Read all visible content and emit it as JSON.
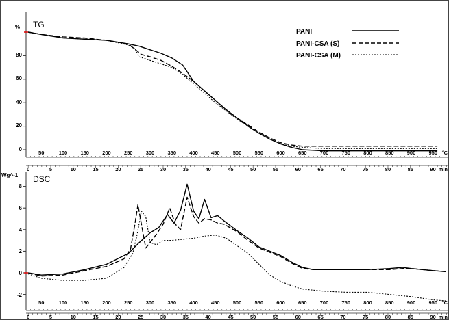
{
  "chart_data": [
    {
      "type": "line",
      "title": "TG",
      "ylabel": "%",
      "ylim": [
        -5,
        105
      ],
      "yticks": [
        "0",
        "20",
        "40",
        "60",
        "80"
      ],
      "top_temp_ticks": [
        "50",
        "100",
        "150",
        "200",
        "250",
        "300",
        "350",
        "400",
        "450",
        "500",
        "550",
        "600",
        "650",
        "700",
        "750",
        "800",
        "850",
        "900",
        "950"
      ],
      "top_temp_unit": "°C",
      "bottom_time_ticks": [
        "0",
        "5",
        "10",
        "15",
        "20",
        "25",
        "30",
        "35",
        "40",
        "45",
        "50",
        "55",
        "60",
        "65",
        "70",
        "75",
        "80",
        "85",
        "90"
      ],
      "bottom_time_unit": "min",
      "legend_position": "top-right",
      "series": [
        {
          "name": "PANI",
          "style": "solid",
          "points": [
            [
              20,
              100
            ],
            [
              50,
              98
            ],
            [
              100,
              95
            ],
            [
              150,
              94
            ],
            [
              200,
              93
            ],
            [
              250,
              90
            ],
            [
              275,
              88
            ],
            [
              300,
              85
            ],
            [
              325,
              82
            ],
            [
              350,
              78
            ],
            [
              375,
              72
            ],
            [
              400,
              58
            ],
            [
              425,
              50
            ],
            [
              450,
              42
            ],
            [
              475,
              34
            ],
            [
              500,
              27
            ],
            [
              525,
              20
            ],
            [
              550,
              14
            ],
            [
              575,
              9
            ],
            [
              600,
              5
            ],
            [
              625,
              2
            ],
            [
              650,
              0
            ],
            [
              700,
              -1
            ],
            [
              800,
              -1
            ],
            [
              900,
              -1
            ],
            [
              960,
              -1
            ]
          ]
        },
        {
          "name": "PANI-CSA (S)",
          "style": "dashed",
          "points": [
            [
              20,
              100
            ],
            [
              50,
              98
            ],
            [
              100,
              96
            ],
            [
              150,
              95
            ],
            [
              200,
              93
            ],
            [
              250,
              90
            ],
            [
              260,
              87
            ],
            [
              270,
              84
            ],
            [
              280,
              81
            ],
            [
              300,
              79
            ],
            [
              325,
              76
            ],
            [
              350,
              71
            ],
            [
              375,
              65
            ],
            [
              400,
              58
            ],
            [
              425,
              50
            ],
            [
              450,
              42
            ],
            [
              475,
              34
            ],
            [
              500,
              27
            ],
            [
              525,
              21
            ],
            [
              550,
              15
            ],
            [
              575,
              10
            ],
            [
              600,
              6
            ],
            [
              625,
              4
            ],
            [
              650,
              3
            ],
            [
              700,
              3
            ],
            [
              800,
              3
            ],
            [
              900,
              3
            ],
            [
              960,
              3
            ]
          ]
        },
        {
          "name": "PANI-CSA (M)",
          "style": "dotted",
          "points": [
            [
              20,
              100
            ],
            [
              50,
              98
            ],
            [
              100,
              95
            ],
            [
              150,
              94
            ],
            [
              200,
              93
            ],
            [
              250,
              89
            ],
            [
              265,
              86
            ],
            [
              275,
              79
            ],
            [
              300,
              76
            ],
            [
              325,
              73
            ],
            [
              350,
              70
            ],
            [
              375,
              64
            ],
            [
              400,
              56
            ],
            [
              425,
              48
            ],
            [
              450,
              40
            ],
            [
              475,
              33
            ],
            [
              500,
              26
            ],
            [
              525,
              20
            ],
            [
              550,
              14
            ],
            [
              575,
              9
            ],
            [
              600,
              5
            ],
            [
              625,
              3
            ],
            [
              650,
              2
            ],
            [
              700,
              1
            ],
            [
              800,
              1
            ],
            [
              900,
              1
            ],
            [
              960,
              1
            ]
          ]
        }
      ]
    },
    {
      "type": "line",
      "title": "DSC",
      "ylabel": "Wg^-1",
      "ylim": [
        -3,
        8.7
      ],
      "yticks": [
        "-2",
        "0",
        "2",
        "4",
        "6",
        "8"
      ],
      "top_temp_ticks": [
        "50",
        "100",
        "150",
        "200",
        "250",
        "300",
        "350",
        "400",
        "450",
        "500",
        "550",
        "600",
        "650",
        "700",
        "750",
        "800",
        "850",
        "900",
        "950"
      ],
      "top_temp_unit": "°C",
      "bottom_time_ticks": [
        "0",
        "5",
        "10",
        "15",
        "20",
        "25",
        "30",
        "35",
        "40",
        "45",
        "50",
        "55",
        "60",
        "65",
        "70",
        "75",
        "80",
        "85",
        "90"
      ],
      "bottom_time_unit": "min",
      "series": [
        {
          "name": "PANI",
          "style": "solid",
          "points": [
            [
              20,
              0
            ],
            [
              50,
              -0.2
            ],
            [
              100,
              -0.1
            ],
            [
              150,
              0.3
            ],
            [
              200,
              0.8
            ],
            [
              250,
              1.8
            ],
            [
              275,
              2.8
            ],
            [
              300,
              3.7
            ],
            [
              320,
              4.2
            ],
            [
              340,
              5.4
            ],
            [
              355,
              4.6
            ],
            [
              370,
              5.8
            ],
            [
              385,
              8.2
            ],
            [
              400,
              5.7
            ],
            [
              412,
              5.0
            ],
            [
              425,
              6.8
            ],
            [
              440,
              5.1
            ],
            [
              455,
              5.3
            ],
            [
              470,
              4.8
            ],
            [
              500,
              3.9
            ],
            [
              525,
              3.2
            ],
            [
              550,
              2.4
            ],
            [
              575,
              2.0
            ],
            [
              600,
              1.6
            ],
            [
              625,
              1.0
            ],
            [
              650,
              0.5
            ],
            [
              675,
              0.3
            ],
            [
              700,
              0.3
            ],
            [
              750,
              0.3
            ],
            [
              800,
              0.3
            ],
            [
              850,
              0.4
            ],
            [
              880,
              0.5
            ],
            [
              900,
              0.4
            ],
            [
              950,
              0.2
            ],
            [
              980,
              0.1
            ]
          ]
        },
        {
          "name": "PANI-CSA (S)",
          "style": "dashed",
          "points": [
            [
              20,
              0
            ],
            [
              50,
              -0.3
            ],
            [
              100,
              -0.2
            ],
            [
              150,
              0.2
            ],
            [
              200,
              0.6
            ],
            [
              240,
              1.3
            ],
            [
              255,
              2.2
            ],
            [
              265,
              4.5
            ],
            [
              272,
              6.3
            ],
            [
              280,
              4.5
            ],
            [
              290,
              2.3
            ],
            [
              300,
              2.8
            ],
            [
              315,
              3.6
            ],
            [
              330,
              4.5
            ],
            [
              345,
              6.0
            ],
            [
              358,
              4.5
            ],
            [
              370,
              4.0
            ],
            [
              385,
              7.0
            ],
            [
              400,
              5.2
            ],
            [
              412,
              4.6
            ],
            [
              425,
              5.0
            ],
            [
              440,
              4.9
            ],
            [
              455,
              4.6
            ],
            [
              470,
              4.5
            ],
            [
              500,
              3.8
            ],
            [
              525,
              3.0
            ],
            [
              550,
              2.3
            ],
            [
              575,
              1.9
            ],
            [
              600,
              1.5
            ],
            [
              625,
              0.9
            ],
            [
              650,
              0.4
            ],
            [
              675,
              0.3
            ],
            [
              700,
              0.3
            ],
            [
              750,
              0.3
            ],
            [
              800,
              0.3
            ],
            [
              850,
              0.3
            ],
            [
              880,
              0.4
            ],
            [
              900,
              0.4
            ],
            [
              950,
              0.2
            ],
            [
              980,
              0.1
            ]
          ]
        },
        {
          "name": "PANI-CSA (M)",
          "style": "dotted",
          "points": [
            [
              20,
              -0.1
            ],
            [
              50,
              -0.5
            ],
            [
              100,
              -0.7
            ],
            [
              150,
              -0.7
            ],
            [
              200,
              -0.5
            ],
            [
              240,
              0.5
            ],
            [
              260,
              1.8
            ],
            [
              270,
              3.5
            ],
            [
              280,
              5.7
            ],
            [
              290,
              5.2
            ],
            [
              300,
              2.8
            ],
            [
              315,
              2.6
            ],
            [
              330,
              3.0
            ],
            [
              350,
              3.0
            ],
            [
              375,
              3.1
            ],
            [
              400,
              3.2
            ],
            [
              425,
              3.4
            ],
            [
              450,
              3.5
            ],
            [
              475,
              3.2
            ],
            [
              500,
              2.5
            ],
            [
              525,
              1.8
            ],
            [
              550,
              0.8
            ],
            [
              575,
              -0.2
            ],
            [
              600,
              -0.8
            ],
            [
              625,
              -1.2
            ],
            [
              650,
              -1.5
            ],
            [
              700,
              -1.7
            ],
            [
              750,
              -1.8
            ],
            [
              800,
              -1.8
            ],
            [
              850,
              -2.0
            ],
            [
              900,
              -2.2
            ],
            [
              950,
              -2.5
            ],
            [
              980,
              -2.6
            ]
          ]
        }
      ]
    }
  ]
}
